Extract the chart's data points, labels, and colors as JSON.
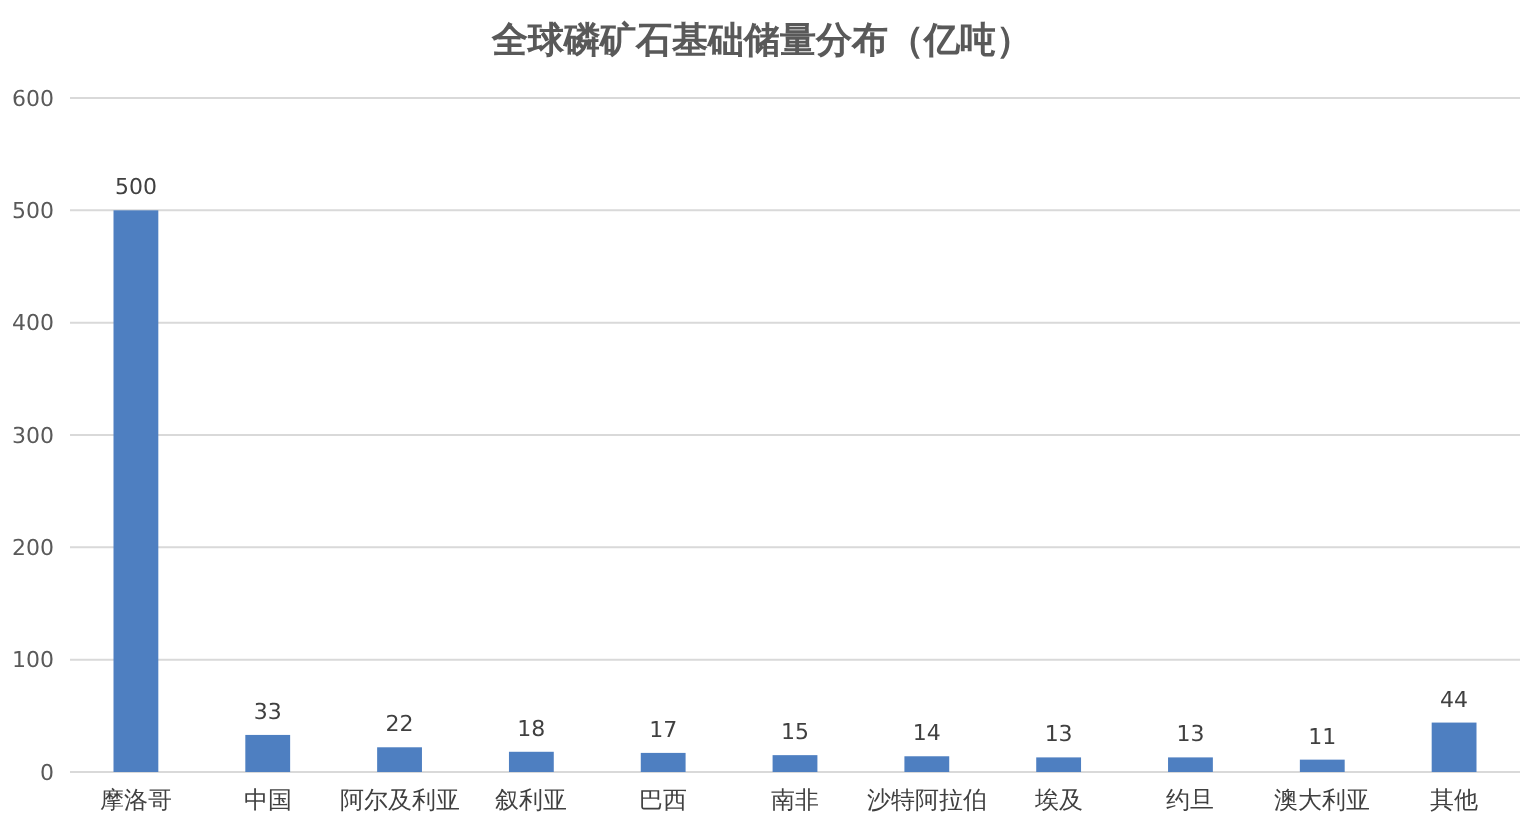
{
  "chart_data": {
    "type": "bar",
    "title": "全球磷矿石基础储量分布（亿吨）",
    "categories": [
      "摩洛哥",
      "中国",
      "阿尔及利亚",
      "叙利亚",
      "巴西",
      "南非",
      "沙特阿拉伯",
      "埃及",
      "约旦",
      "澳大利亚",
      "其他"
    ],
    "values": [
      500,
      33,
      22,
      18,
      17,
      15,
      14,
      13,
      13,
      11,
      44
    ],
    "color": "#4e7fc1",
    "ylim": [
      0,
      600
    ],
    "yticks": [
      0,
      100,
      200,
      300,
      400,
      500,
      600
    ],
    "grid": "y",
    "data_labels": true
  }
}
